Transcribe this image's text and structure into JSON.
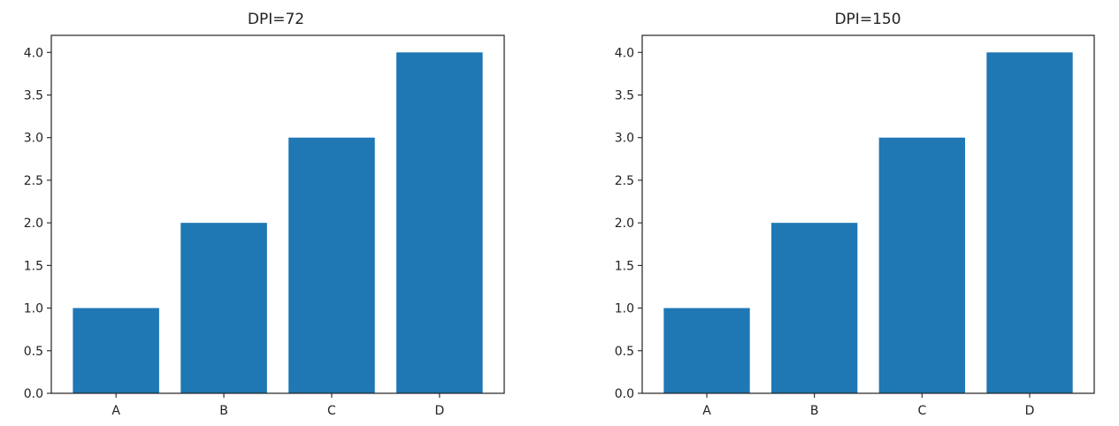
{
  "chart_data": [
    {
      "type": "bar",
      "title": "DPI=72",
      "categories": [
        "A",
        "B",
        "C",
        "D"
      ],
      "values": [
        1,
        2,
        3,
        4
      ],
      "xlabel": "",
      "ylabel": "",
      "ylim": [
        0,
        4.2
      ],
      "yticks": [
        "0.0",
        "0.5",
        "1.0",
        "1.5",
        "2.0",
        "2.5",
        "3.0",
        "3.5",
        "4.0"
      ],
      "grid": false,
      "bar_color": "#1f77b4"
    },
    {
      "type": "bar",
      "title": "DPI=150",
      "categories": [
        "A",
        "B",
        "C",
        "D"
      ],
      "values": [
        1,
        2,
        3,
        4
      ],
      "xlabel": "",
      "ylabel": "",
      "ylim": [
        0,
        4.2
      ],
      "yticks": [
        "0.0",
        "0.5",
        "1.0",
        "1.5",
        "2.0",
        "2.5",
        "3.0",
        "3.5",
        "4.0"
      ],
      "grid": false,
      "bar_color": "#1f77b4"
    }
  ]
}
